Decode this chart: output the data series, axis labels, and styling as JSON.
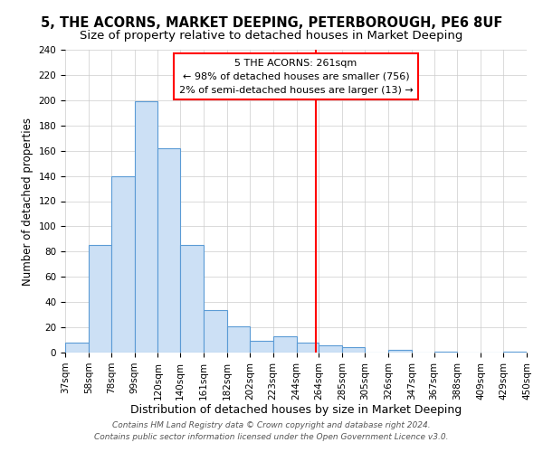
{
  "title": "5, THE ACORNS, MARKET DEEPING, PETERBOROUGH, PE6 8UF",
  "subtitle": "Size of property relative to detached houses in Market Deeping",
  "xlabel": "Distribution of detached houses by size in Market Deeping",
  "ylabel": "Number of detached properties",
  "bar_edges": [
    37,
    58,
    78,
    99,
    120,
    140,
    161,
    182,
    202,
    223,
    244,
    264,
    285,
    305,
    326,
    347,
    367,
    388,
    409,
    429,
    450
  ],
  "bar_heights": [
    8,
    85,
    140,
    199,
    162,
    85,
    34,
    21,
    9,
    13,
    8,
    6,
    4,
    0,
    2,
    0,
    1,
    0,
    0,
    1
  ],
  "bar_color": "#cce0f5",
  "bar_edge_color": "#5b9bd5",
  "vline_x": 261,
  "vline_color": "red",
  "ylim": [
    0,
    240
  ],
  "yticks": [
    0,
    20,
    40,
    60,
    80,
    100,
    120,
    140,
    160,
    180,
    200,
    220,
    240
  ],
  "annotation_title": "5 THE ACORNS: 261sqm",
  "annotation_line1": "← 98% of detached houses are smaller (756)",
  "annotation_line2": "2% of semi-detached houses are larger (13) →",
  "footer1": "Contains HM Land Registry data © Crown copyright and database right 2024.",
  "footer2": "Contains public sector information licensed under the Open Government Licence v3.0.",
  "background_color": "#ffffff",
  "grid_color": "#cccccc",
  "title_fontsize": 10.5,
  "subtitle_fontsize": 9.5,
  "xlabel_fontsize": 9,
  "ylabel_fontsize": 8.5,
  "tick_fontsize": 7.5,
  "annot_fontsize": 8,
  "footer_fontsize": 6.5
}
